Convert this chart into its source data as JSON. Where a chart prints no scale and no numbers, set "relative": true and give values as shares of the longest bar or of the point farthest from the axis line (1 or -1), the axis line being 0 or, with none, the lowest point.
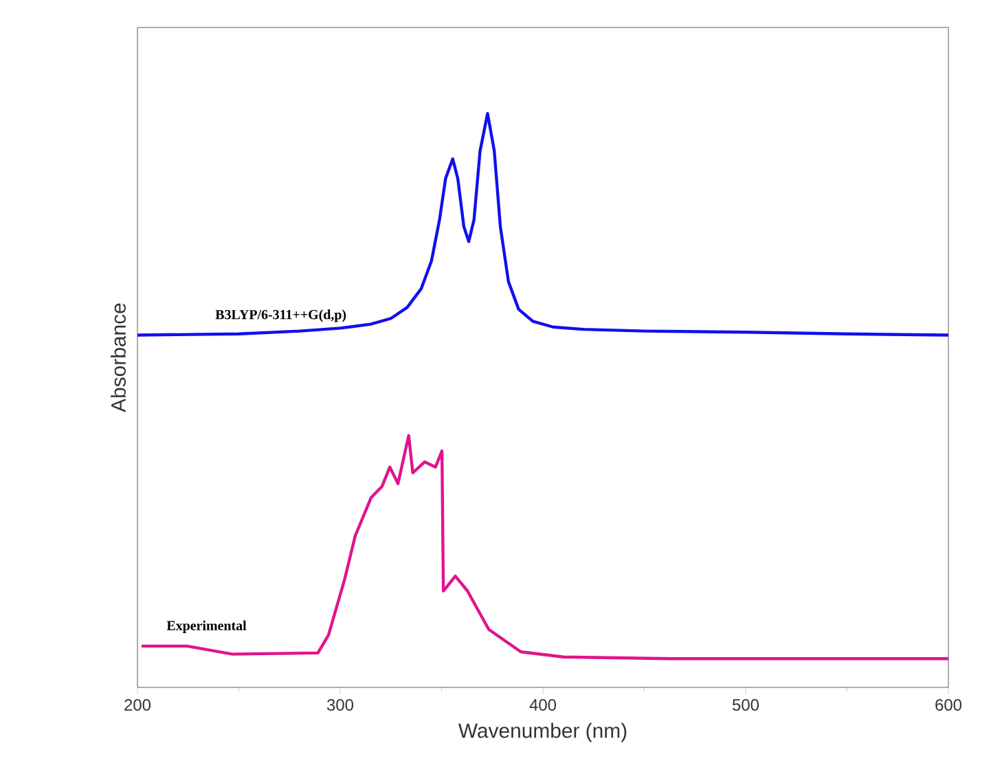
{
  "chart_data": {
    "type": "line",
    "relative": true,
    "xlabel": "Wavenumber (nm)",
    "ylabel": "Absorbance",
    "xlim": [
      200,
      600
    ],
    "xticks": [
      200,
      {
        "value": 250,
        "label": null
      },
      300,
      {
        "value": 350,
        "label": null
      },
      400,
      {
        "value": 450,
        "label": null
      },
      500,
      {
        "value": 550,
        "label": null
      },
      600
    ],
    "marker": "none",
    "line_style": "solid",
    "legend": false,
    "grid": false,
    "series": [
      {
        "name": "B3LYP/6-311++G(d,p)",
        "color": "#1010ee",
        "x": [
          200,
          250,
          280,
          300,
          315,
          325,
          333,
          340,
          345,
          349,
          352,
          355.5,
          358,
          361,
          363.4,
          366,
          369,
          372.7,
          376,
          379,
          383,
          388,
          395,
          405,
          420,
          450,
          500,
          550,
          600
        ],
        "values": [
          0.614,
          0.616,
          0.621,
          0.626,
          0.633,
          0.643,
          0.662,
          0.695,
          0.743,
          0.815,
          0.887,
          0.921,
          0.887,
          0.803,
          0.777,
          0.815,
          0.935,
          1.0,
          0.935,
          0.803,
          0.707,
          0.659,
          0.638,
          0.628,
          0.624,
          0.621,
          0.619,
          0.616,
          0.614
        ]
      },
      {
        "name": "Experimental",
        "color": "#e0148c",
        "x": [
          202,
          224.4,
          246.8,
          289,
          294.2,
          302.1,
          307.4,
          315.3,
          320.6,
          324.5,
          328.5,
          333.8,
          335.8,
          341.7,
          347,
          350.2,
          350.9,
          356.8,
          362.8,
          373.3,
          389.1,
          410.2,
          463,
          600
        ],
        "values": [
          0.072,
          0.072,
          0.058,
          0.06,
          0.091,
          0.187,
          0.264,
          0.331,
          0.35,
          0.384,
          0.355,
          0.439,
          0.374,
          0.393,
          0.384,
          0.412,
          0.168,
          0.194,
          0.168,
          0.101,
          0.062,
          0.053,
          0.05,
          0.05
        ]
      }
    ]
  }
}
